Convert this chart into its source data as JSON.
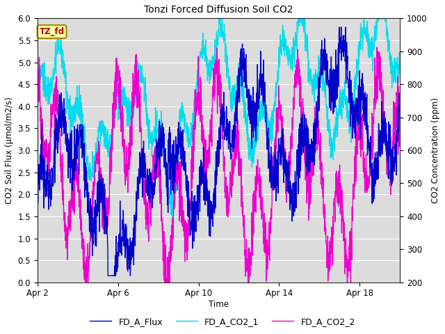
{
  "title": "Tonzi Forced Diffusion Soil CO2",
  "xlabel": "Time",
  "ylabel_left": "CO2 Soil Flux (μmol/m2/s)",
  "ylabel_right": "CO2 Concentration (ppm)",
  "ylim_left": [
    0.0,
    6.0
  ],
  "ylim_right": [
    200,
    1000
  ],
  "yticks_left": [
    0.0,
    0.5,
    1.0,
    1.5,
    2.0,
    2.5,
    3.0,
    3.5,
    4.0,
    4.5,
    5.0,
    5.5,
    6.0
  ],
  "yticks_right": [
    200,
    300,
    400,
    500,
    600,
    700,
    800,
    900,
    1000
  ],
  "xtick_positions": [
    0,
    4,
    8,
    12,
    16
  ],
  "xtick_labels": [
    "Apr 2",
    "Apr 6",
    "Apr 10",
    "Apr 14",
    "Apr 18"
  ],
  "color_flux": "#0000CC",
  "color_co2_1": "#00DDEE",
  "color_co2_2": "#EE00CC",
  "label_flux": "FD_A_Flux",
  "label_co2_1": "FD_A_CO2_1",
  "label_co2_2": "FD_A_CO2_2",
  "tag_text": "TZ_fd",
  "tag_bg": "#FFFFAA",
  "tag_border": "#AA8800",
  "tag_text_color": "#BB0000",
  "fig_bg": "#FFFFFF",
  "plot_bg": "#DCDCDC",
  "grid_color": "#FFFFFF",
  "linewidth": 1.0,
  "n_points": 1800
}
